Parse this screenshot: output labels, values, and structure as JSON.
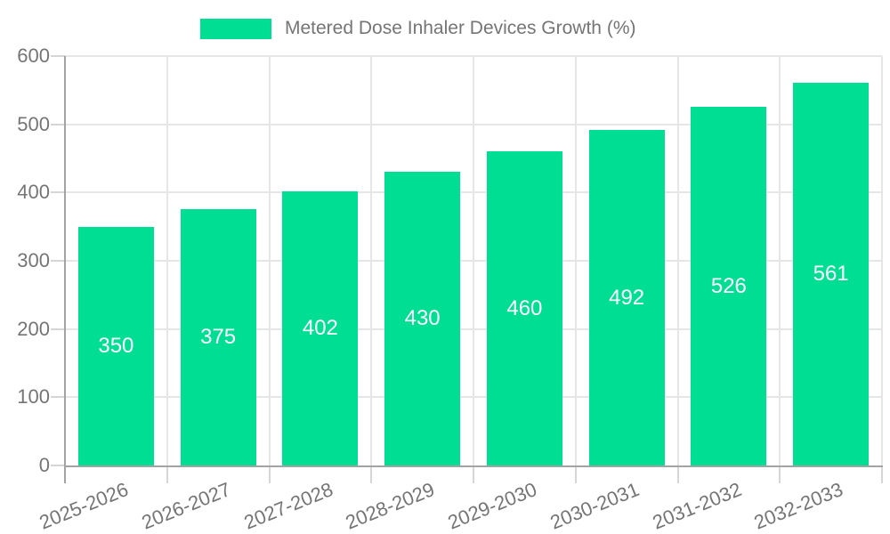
{
  "legend": {
    "label": "Metered Dose Inhaler Devices Growth (%)"
  },
  "colors": {
    "bar": "#00DE94",
    "axis_line": "#A3A3A3",
    "gridline": "#E6E6E6",
    "tick": "#D6D6D6",
    "axis_text": "#757575",
    "value_label_text": "#FFFFFF",
    "background": "#FFFFFF"
  },
  "chart_data": {
    "type": "bar",
    "title": "",
    "categories": [
      "2025-2026",
      "2026-2027",
      "2027-2028",
      "2028-2029",
      "2029-2030",
      "2030-2031",
      "2031-2032",
      "2032-2033"
    ],
    "values": [
      350,
      375,
      402,
      430,
      460,
      492,
      526,
      561
    ],
    "series_name": "Metered Dose Inhaler Devices Growth (%)",
    "xlabel": "",
    "ylabel": "",
    "ylim": [
      0,
      600
    ],
    "yticks": [
      0,
      100,
      200,
      300,
      400,
      500,
      600
    ],
    "grid": true,
    "legend_position": "top-center",
    "value_label_position": "inside-center",
    "x_label_rotation_deg": -22
  }
}
